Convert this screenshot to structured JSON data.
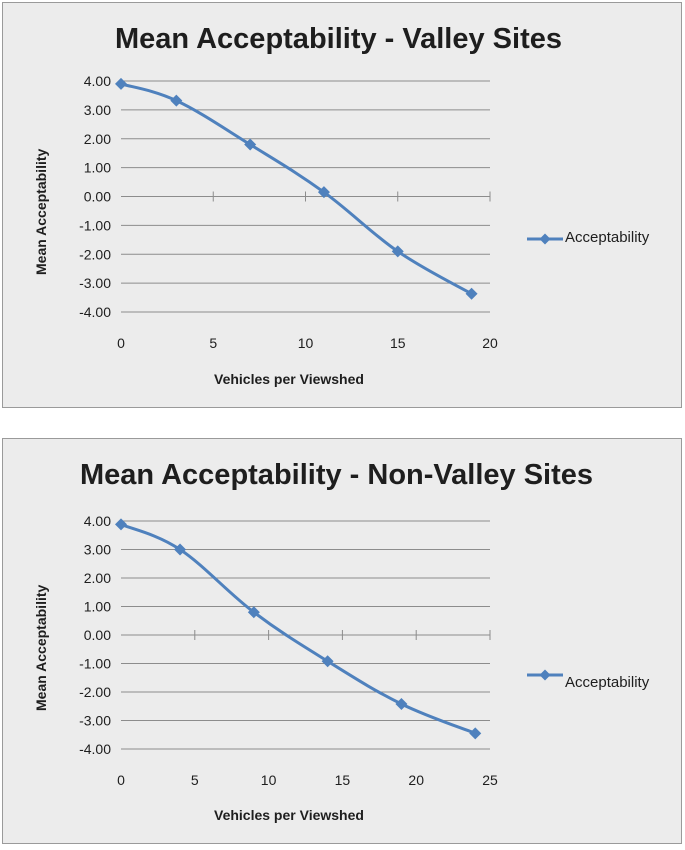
{
  "chart_data": [
    {
      "type": "line",
      "title": "Mean Acceptability - Valley Sites",
      "xlabel": "Vehicles per Viewshed",
      "ylabel": "Mean Acceptability",
      "xlim": [
        0,
        20
      ],
      "ylim": [
        -4,
        4
      ],
      "x_ticks": [
        "0",
        "5",
        "10",
        "15",
        "20"
      ],
      "y_ticks": [
        "4.00",
        "3.00",
        "2.00",
        "1.00",
        "0.00",
        "-1.00",
        "-2.00",
        "-3.00",
        "-4.00"
      ],
      "grid": true,
      "legend_position": "right",
      "series": [
        {
          "name": "Acceptability",
          "color": "#4f81bd",
          "x": [
            0,
            3,
            7,
            11,
            15,
            19
          ],
          "y": [
            3.9,
            3.32,
            1.8,
            0.15,
            -1.9,
            -3.37
          ]
        }
      ]
    },
    {
      "type": "line",
      "title": "Mean Acceptability - Non-Valley Sites",
      "xlabel": "Vehicles per Viewshed",
      "ylabel": "Mean Acceptability",
      "xlim": [
        0,
        25
      ],
      "ylim": [
        -4,
        4
      ],
      "x_ticks": [
        "0",
        "5",
        "10",
        "15",
        "20",
        "25"
      ],
      "y_ticks": [
        "4.00",
        "3.00",
        "2.00",
        "1.00",
        "0.00",
        "-1.00",
        "-2.00",
        "-3.00",
        "-4.00"
      ],
      "grid": true,
      "legend_position": "right",
      "series": [
        {
          "name": "Acceptability",
          "color": "#4f81bd",
          "x": [
            0,
            4,
            9,
            14,
            19,
            24
          ],
          "y": [
            3.88,
            3.0,
            0.8,
            -0.92,
            -2.42,
            -3.45
          ]
        }
      ]
    }
  ]
}
